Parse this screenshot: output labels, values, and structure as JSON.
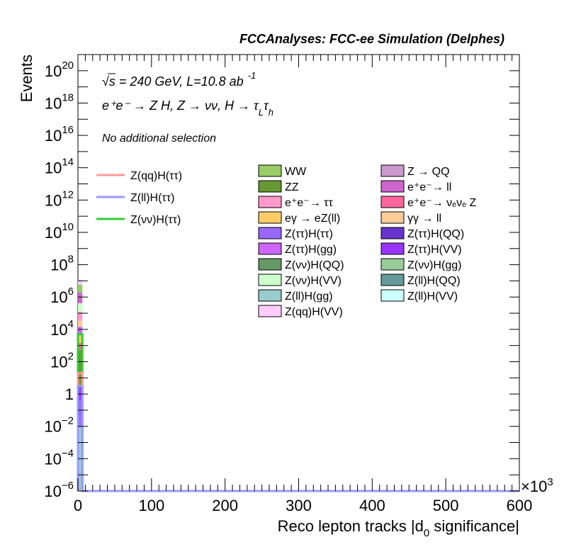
{
  "header": {
    "title": "FCCAnalyses: FCC-ee Simulation (Delphes)"
  },
  "annotations": {
    "line1": "√s = 240 GeV, L=10.8 ab",
    "line1_sup": "-1",
    "line2": "e⁺e⁻ → Z H, Z → νν, H → τ",
    "line2_sub1": "L",
    "line2_tau": "τ",
    "line2_sub2": "h",
    "line3": "No additional selection"
  },
  "axes": {
    "ylabel": "Events",
    "xlabel": "Reco lepton tracks |d",
    "xlabel_sub": "0",
    "xlabel_end": " significance|",
    "x_multiplier": "×10",
    "x_multiplier_exp": "3",
    "x_ticks": [
      "0",
      "100",
      "200",
      "300",
      "400",
      "500",
      "600"
    ],
    "y_ticks": [
      {
        "base": "10",
        "exp": "20"
      },
      {
        "base": "10",
        "exp": "18"
      },
      {
        "base": "10",
        "exp": "16"
      },
      {
        "base": "10",
        "exp": "14"
      },
      {
        "base": "10",
        "exp": "12"
      },
      {
        "base": "10",
        "exp": "10"
      },
      {
        "base": "10",
        "exp": "8"
      },
      {
        "base": "10",
        "exp": "6"
      },
      {
        "base": "10",
        "exp": "4"
      },
      {
        "base": "10",
        "exp": "2"
      },
      {
        "base": "1",
        "exp": ""
      },
      {
        "base": "10",
        "exp": "−2"
      },
      {
        "base": "10",
        "exp": "−4"
      },
      {
        "base": "10",
        "exp": "−6"
      }
    ]
  },
  "legend_signals": [
    {
      "label": "Z(qq)H(ττ)",
      "color": "#ff9999"
    },
    {
      "label": "Z(ll)H(ττ)",
      "color": "#9999ff"
    },
    {
      "label": "Z(νν)H(ττ)",
      "color": "#33cc33"
    }
  ],
  "legend_backgrounds_col1": [
    {
      "label": "WW",
      "color": "#99cc66"
    },
    {
      "label": "ZZ",
      "color": "#669933"
    },
    {
      "label": "e⁺e⁻→ ττ",
      "color": "#ff99cc"
    },
    {
      "label": "eγ → eZ(ll)",
      "color": "#ffcc66"
    },
    {
      "label": "Z(ττ)H(ττ)",
      "color": "#9966ff"
    },
    {
      "label": "Z(ττ)H(gg)",
      "color": "#cc66ff"
    },
    {
      "label": "Z(νν)H(QQ)",
      "color": "#669966"
    },
    {
      "label": "Z(νν)H(VV)",
      "color": "#ccffcc"
    },
    {
      "label": "Z(ll)H(gg)",
      "color": "#99cccc"
    },
    {
      "label": "Z(qq)H(VV)",
      "color": "#ffccff"
    }
  ],
  "legend_backgrounds_col2": [
    {
      "label": "Z → QQ",
      "color": "#cc99cc"
    },
    {
      "label": "e⁺e⁻→ ll",
      "color": "#cc66cc"
    },
    {
      "label": "e⁺e⁻→ νₑνₑ Z",
      "color": "#ff6699"
    },
    {
      "label": "γγ → ll",
      "color": "#ffcc99"
    },
    {
      "label": "Z(ττ)H(QQ)",
      "color": "#6633cc"
    },
    {
      "label": "Z(ττ)H(VV)",
      "color": "#9933ff"
    },
    {
      "label": "Z(νν)H(gg)",
      "color": "#99cc99"
    },
    {
      "label": "Z(ll)H(QQ)",
      "color": "#669999"
    },
    {
      "label": "Z(ll)H(VV)",
      "color": "#ccffff"
    }
  ],
  "chart_data": {
    "type": "bar",
    "title": "FCCAnalyses: FCC-ee Simulation (Delphes)",
    "xlabel": "Reco lepton tracks |d0 significance| (×10^3)",
    "ylabel": "Events",
    "log_y": true,
    "xlim": [
      0,
      600
    ],
    "ylim": [
      1e-06,
      1e+21
    ],
    "bin_x": [
      0,
      6
    ],
    "stack": [
      {
        "name": "Z(qq)H(VV)",
        "color": "#ffccff",
        "value": 6000000
      },
      {
        "name": "WW",
        "color": "#99cc66",
        "value": 4000000
      },
      {
        "name": "e+e- → ll",
        "color": "#cc66cc",
        "value": 1500000
      },
      {
        "name": "Z(νν)H(VV)",
        "color": "#ccffcc",
        "value": 300000
      },
      {
        "name": "e+e- → ττ",
        "color": "#ff99cc",
        "value": 80000
      },
      {
        "name": "γγ → ll",
        "color": "#ffcc99",
        "value": 20000
      },
      {
        "name": "Z(ττ)H(gg)",
        "color": "#cc66ff",
        "value": 10000
      },
      {
        "name": "eγ → eZ(ll)",
        "color": "#ffcc66",
        "value": 3000
      },
      {
        "name": "e+e- → νeνe Z",
        "color": "#ff6699",
        "value": 1000
      },
      {
        "name": "ZZ",
        "color": "#669933",
        "value": 500
      },
      {
        "name": "Z(ττ)H(VV)",
        "color": "#9933ff",
        "value": 3
      },
      {
        "name": "Z(ττ)H(ττ)",
        "color": "#9966ff",
        "value": 0.4
      },
      {
        "name": "Z(ll)H(gg)",
        "color": "#99cccc",
        "value": 0.01
      }
    ],
    "signals": [
      {
        "name": "Z(νν)H(ττ)",
        "color": "#33cc33",
        "value": 5000
      },
      {
        "name": "Z(qq)H(ττ)",
        "color": "#ff9999",
        "value": 20
      },
      {
        "name": "Z(ll)H(ττ)",
        "color": "#9999ff",
        "value": 3
      }
    ],
    "legend_position": "top-right",
    "grid": false
  }
}
